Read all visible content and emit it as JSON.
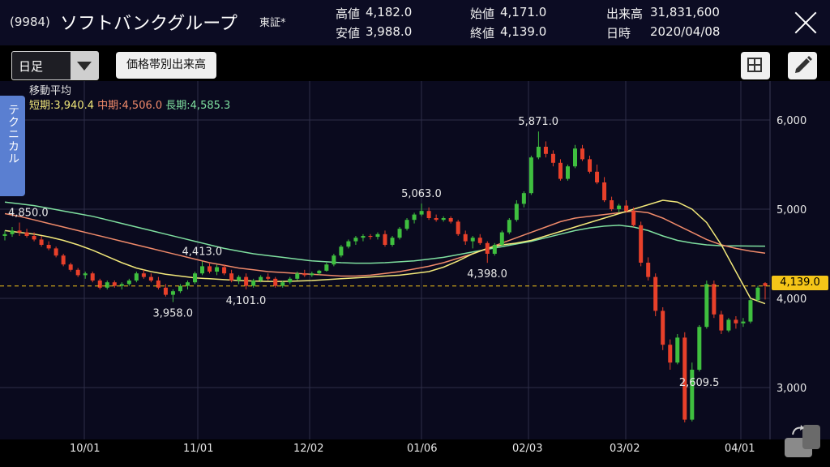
{
  "header": {
    "code": "(9984)",
    "name": "ソフトバンクグループ",
    "exchange": "東証*",
    "high_label": "高値",
    "high": "4,182.0",
    "low_label": "安値",
    "low": "3,988.0",
    "open_label": "始値",
    "open": "4,171.0",
    "close_label": "終値",
    "close": "4,139.0",
    "volume_label": "出来高",
    "volume": "31,831,600",
    "date_label": "日時",
    "date": "2020/04/08"
  },
  "toolbar": {
    "period": "日足",
    "volume_by_price": "価格帯別出来高"
  },
  "sidetab": "テクニカル",
  "ma": {
    "title": "移動平均",
    "short": "短期:3,940.4",
    "mid": "中期:4,506.0",
    "long": "長期:4,585.3"
  },
  "colors": {
    "up": "#3fbf3f",
    "down": "#e8402a",
    "ma_short": "#f2e87a",
    "ma_mid": "#f08a6a",
    "ma_long": "#7fe0a0",
    "current": "#f5c518",
    "tab": "#5a7fd1"
  },
  "chart_data": {
    "type": "candlestick",
    "ylim": [
      2500,
      6300
    ],
    "y_ticks": [
      "6,000",
      "5,000",
      "4,000",
      "3,000"
    ],
    "x_ticks": [
      "10/01",
      "11/01",
      "12/02",
      "01/06",
      "02/03",
      "03/02",
      "04/01"
    ],
    "current_price": "4,139.0",
    "annotations": [
      "4,850.0",
      "3,958.0",
      "4,413.0",
      "4,101.0",
      "5,063.0",
      "4,398.0",
      "5,871.0",
      "2,609.5"
    ],
    "candles": [
      [
        4700,
        4760,
        4650,
        4720
      ],
      [
        4720,
        4800,
        4690,
        4760
      ],
      [
        4760,
        4850,
        4700,
        4740
      ],
      [
        4740,
        4780,
        4680,
        4700
      ],
      [
        4700,
        4740,
        4640,
        4660
      ],
      [
        4660,
        4700,
        4580,
        4600
      ],
      [
        4600,
        4640,
        4540,
        4560
      ],
      [
        4560,
        4580,
        4460,
        4480
      ],
      [
        4480,
        4500,
        4360,
        4380
      ],
      [
        4380,
        4400,
        4300,
        4320
      ],
      [
        4320,
        4340,
        4240,
        4260
      ],
      [
        4260,
        4300,
        4220,
        4280
      ],
      [
        4280,
        4300,
        4180,
        4200
      ],
      [
        4200,
        4220,
        4100,
        4120
      ],
      [
        4120,
        4200,
        4100,
        4180
      ],
      [
        4180,
        4200,
        4120,
        4140
      ],
      [
        4140,
        4180,
        4100,
        4160
      ],
      [
        4160,
        4220,
        4140,
        4200
      ],
      [
        4200,
        4300,
        4180,
        4280
      ],
      [
        4280,
        4320,
        4220,
        4240
      ],
      [
        4240,
        4280,
        4180,
        4200
      ],
      [
        4200,
        4240,
        4100,
        4120
      ],
      [
        4120,
        4160,
        4020,
        4040
      ],
      [
        4040,
        4100,
        3958,
        4080
      ],
      [
        4080,
        4160,
        4060,
        4140
      ],
      [
        4140,
        4200,
        4100,
        4180
      ],
      [
        4180,
        4300,
        4160,
        4280
      ],
      [
        4280,
        4413,
        4260,
        4360
      ],
      [
        4360,
        4400,
        4280,
        4300
      ],
      [
        4300,
        4380,
        4260,
        4350
      ],
      [
        4350,
        4380,
        4260,
        4280
      ],
      [
        4280,
        4320,
        4180,
        4200
      ],
      [
        4200,
        4260,
        4160,
        4240
      ],
      [
        4240,
        4280,
        4101,
        4140
      ],
      [
        4140,
        4220,
        4120,
        4200
      ],
      [
        4200,
        4260,
        4180,
        4240
      ],
      [
        4240,
        4280,
        4200,
        4220
      ],
      [
        4220,
        4240,
        4120,
        4140
      ],
      [
        4140,
        4200,
        4120,
        4180
      ],
      [
        4180,
        4240,
        4160,
        4220
      ],
      [
        4220,
        4300,
        4200,
        4280
      ],
      [
        4280,
        4320,
        4240,
        4260
      ],
      [
        4260,
        4300,
        4240,
        4280
      ],
      [
        4280,
        4320,
        4260,
        4310
      ],
      [
        4310,
        4400,
        4300,
        4380
      ],
      [
        4380,
        4500,
        4360,
        4480
      ],
      [
        4480,
        4600,
        4460,
        4580
      ],
      [
        4580,
        4660,
        4560,
        4640
      ],
      [
        4640,
        4700,
        4600,
        4680
      ],
      [
        4680,
        4720,
        4640,
        4700
      ],
      [
        4700,
        4720,
        4660,
        4690
      ],
      [
        4690,
        4740,
        4660,
        4720
      ],
      [
        4720,
        4760,
        4580,
        4600
      ],
      [
        4600,
        4700,
        4580,
        4680
      ],
      [
        4680,
        4800,
        4660,
        4780
      ],
      [
        4780,
        4900,
        4760,
        4880
      ],
      [
        4880,
        4960,
        4840,
        4940
      ],
      [
        4940,
        5063,
        4920,
        4980
      ],
      [
        4980,
        5020,
        4880,
        4900
      ],
      [
        4900,
        4940,
        4860,
        4880
      ],
      [
        4880,
        4920,
        4860,
        4900
      ],
      [
        4900,
        4920,
        4840,
        4860
      ],
      [
        4860,
        4880,
        4700,
        4720
      ],
      [
        4720,
        4760,
        4600,
        4640
      ],
      [
        4640,
        4700,
        4560,
        4680
      ],
      [
        4680,
        4720,
        4600,
        4620
      ],
      [
        4620,
        4640,
        4398,
        4500
      ],
      [
        4500,
        4620,
        4480,
        4600
      ],
      [
        4600,
        4760,
        4580,
        4740
      ],
      [
        4740,
        4900,
        4720,
        4880
      ],
      [
        4880,
        5100,
        4860,
        5060
      ],
      [
        5060,
        5200,
        5020,
        5180
      ],
      [
        5180,
        5600,
        5160,
        5580
      ],
      [
        5580,
        5871,
        5560,
        5700
      ],
      [
        5700,
        5760,
        5580,
        5620
      ],
      [
        5620,
        5660,
        5480,
        5520
      ],
      [
        5520,
        5560,
        5320,
        5340
      ],
      [
        5340,
        5500,
        5320,
        5480
      ],
      [
        5480,
        5720,
        5460,
        5680
      ],
      [
        5680,
        5720,
        5540,
        5560
      ],
      [
        5560,
        5600,
        5400,
        5420
      ],
      [
        5420,
        5500,
        5280,
        5300
      ],
      [
        5300,
        5360,
        5080,
        5100
      ],
      [
        5100,
        5140,
        4980,
        5000
      ],
      [
        5000,
        5060,
        4960,
        5040
      ],
      [
        5040,
        5100,
        4960,
        4980
      ],
      [
        4980,
        5020,
        4800,
        4820
      ],
      [
        4820,
        4860,
        4360,
        4400
      ],
      [
        4400,
        4460,
        4200,
        4240
      ],
      [
        4240,
        4280,
        3800,
        3860
      ],
      [
        3860,
        3900,
        3420,
        3480
      ],
      [
        3480,
        3540,
        3200,
        3280
      ],
      [
        3280,
        3600,
        3260,
        3560
      ],
      [
        3560,
        3620,
        2609.5,
        2640
      ],
      [
        2640,
        3280,
        2620,
        3200
      ],
      [
        3200,
        3700,
        3180,
        3680
      ],
      [
        3680,
        4200,
        3660,
        4160
      ],
      [
        4160,
        4200,
        3780,
        3820
      ],
      [
        3820,
        3860,
        3600,
        3640
      ],
      [
        3640,
        3780,
        3620,
        3760
      ],
      [
        3760,
        3800,
        3660,
        3720
      ],
      [
        3720,
        3780,
        3680,
        3740
      ],
      [
        3740,
        4000,
        3720,
        3980
      ],
      [
        3980,
        4140,
        3960,
        4120
      ],
      [
        4171,
        4182,
        3988,
        4139
      ]
    ],
    "ma_short": [
      4760,
      4740,
      4720,
      4690,
      4650,
      4600,
      4540,
      4470,
      4400,
      4340,
      4300,
      4270,
      4250,
      4230,
      4220,
      4210,
      4200,
      4195,
      4190,
      4190,
      4195,
      4200,
      4210,
      4220,
      4230,
      4240,
      4250,
      4260,
      4280,
      4300,
      4350,
      4420,
      4500,
      4560,
      4600,
      4620,
      4650,
      4700,
      4750,
      4800,
      4850,
      4900,
      4950,
      5000,
      5050,
      5100,
      5080,
      5000,
      4850,
      4600,
      4300,
      4000,
      3940
    ],
    "ma_mid": [
      4950,
      4920,
      4880,
      4840,
      4800,
      4760,
      4720,
      4680,
      4640,
      4600,
      4560,
      4520,
      4480,
      4440,
      4400,
      4370,
      4340,
      4320,
      4300,
      4290,
      4280,
      4270,
      4260,
      4250,
      4250,
      4260,
      4280,
      4300,
      4330,
      4360,
      4400,
      4450,
      4500,
      4560,
      4620,
      4680,
      4740,
      4800,
      4860,
      4900,
      4920,
      4940,
      4960,
      4980,
      4960,
      4900,
      4820,
      4740,
      4660,
      4600,
      4560,
      4530,
      4506
    ],
    "ma_long": [
      5080,
      5060,
      5040,
      5010,
      4980,
      4950,
      4920,
      4880,
      4840,
      4800,
      4760,
      4720,
      4680,
      4640,
      4600,
      4560,
      4530,
      4500,
      4480,
      4460,
      4440,
      4420,
      4410,
      4400,
      4395,
      4395,
      4400,
      4410,
      4420,
      4440,
      4460,
      4490,
      4520,
      4550,
      4580,
      4610,
      4640,
      4680,
      4720,
      4760,
      4790,
      4810,
      4820,
      4800,
      4760,
      4700,
      4650,
      4620,
      4600,
      4590,
      4588,
      4586,
      4585
    ]
  }
}
